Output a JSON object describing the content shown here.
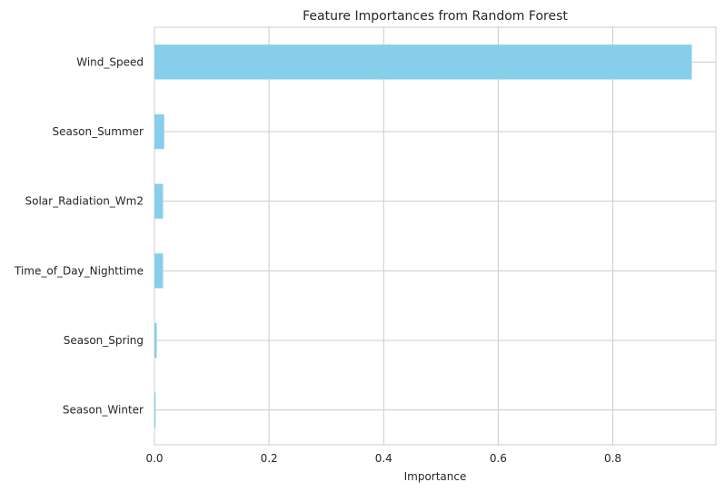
{
  "chart_data": {
    "type": "bar",
    "orientation": "horizontal",
    "title": "Feature Importances from Random Forest",
    "xlabel": "Importance",
    "ylabel": "",
    "categories": [
      "Wind_Speed",
      "Season_Summer",
      "Solar_Radiation_Wm2",
      "Time_of_Day_Nighttime",
      "Season_Spring",
      "Season_Winter"
    ],
    "values": [
      0.938,
      0.017,
      0.015,
      0.015,
      0.004,
      0.002
    ],
    "xlim": [
      0,
      0.98
    ],
    "xticks": [
      0.0,
      0.2,
      0.4,
      0.6,
      0.8
    ],
    "xtick_labels": [
      "0.0",
      "0.2",
      "0.4",
      "0.6",
      "0.8"
    ],
    "grid": true,
    "bar_color": "#87CEEB",
    "grid_color": "#cccccc"
  }
}
